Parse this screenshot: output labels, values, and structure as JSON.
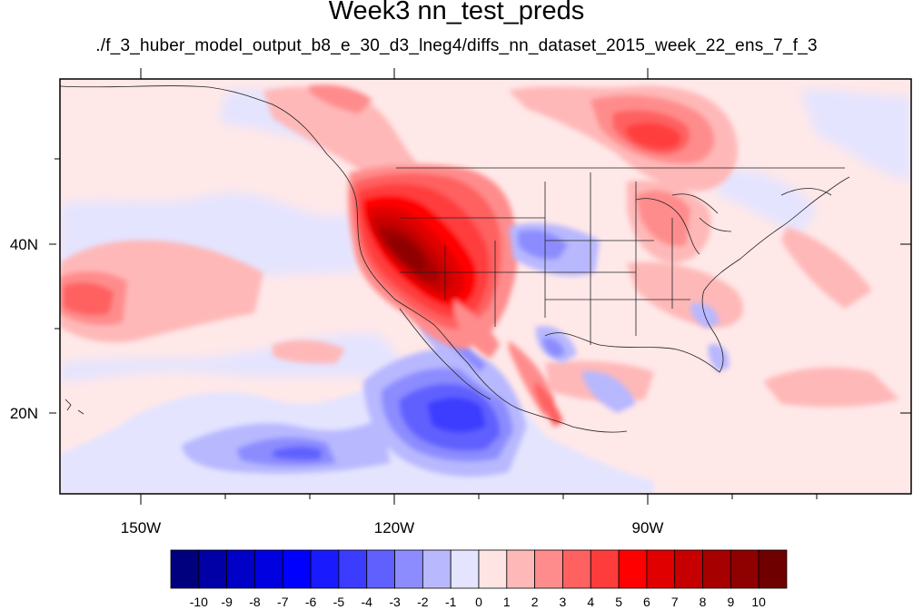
{
  "title": "Week3 nn_test_preds",
  "subtitle": "./f_3_huber_model_output_b8_e_30_d3_lneg4/diffs_nn_dataset_2015_week_22_ens_7_f_3",
  "map": {
    "lon_range": [
      -160,
      -61
    ],
    "lat_range": [
      10.5,
      60.5
    ],
    "x_tick_labels": [
      "150W",
      "120W",
      "90W"
    ],
    "y_tick_labels": [
      "40N",
      "20N"
    ]
  },
  "colorbar": {
    "levels": [
      "-10",
      "-9",
      "-8",
      "-7",
      "-6",
      "-5",
      "-4",
      "-3",
      "-2",
      "-1",
      "0",
      "1",
      "2",
      "3",
      "4",
      "5",
      "6",
      "7",
      "8",
      "9",
      "10"
    ],
    "colors": [
      "#00007f",
      "#0000a6",
      "#0000c6",
      "#0000e0",
      "#0000ff",
      "#1a1aff",
      "#3c3cff",
      "#6060ff",
      "#8c8cff",
      "#b8b8ff",
      "#e4e4ff",
      "#ffe4e4",
      "#ffb8b8",
      "#ff8c8c",
      "#ff6060",
      "#ff3c3c",
      "#ff0000",
      "#e00000",
      "#c60000",
      "#a60000",
      "#8f0000",
      "#6e0000"
    ]
  }
}
